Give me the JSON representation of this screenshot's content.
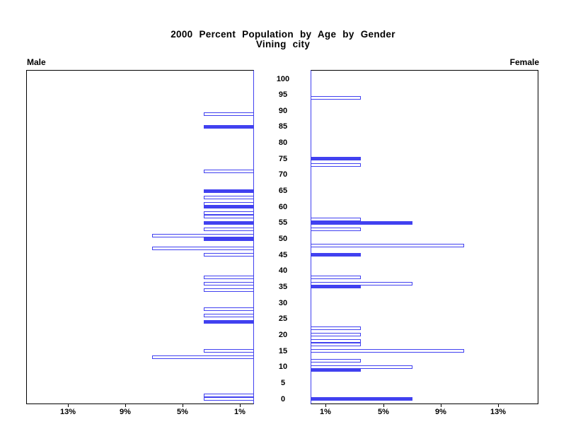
{
  "title": {
    "line1": "2000 Percent Population by Age by Gender",
    "line2": "Vining city"
  },
  "panel_labels": {
    "male": "Male",
    "female": "Female"
  },
  "colors": {
    "bar_blue": "#4141f0",
    "axis_black": "#000000",
    "background": "#ffffff"
  },
  "chart_data": {
    "type": "bar",
    "subtype": "population_pyramid",
    "title": "2000 Percent Population by Age by Gender",
    "subtitle": "Vining city",
    "legend": "none",
    "grid": false,
    "age_axis": {
      "min": 0,
      "max": 100,
      "step": 5,
      "tick_values": [
        0,
        5,
        10,
        15,
        20,
        25,
        30,
        35,
        40,
        45,
        50,
        55,
        60,
        65,
        70,
        75,
        80,
        85,
        90,
        95,
        100
      ],
      "tick_labels": [
        "0",
        "5",
        "10",
        "15",
        "20",
        "25",
        "30",
        "35",
        "40",
        "45",
        "50",
        "55",
        "60",
        "65",
        "70",
        "75",
        "80",
        "85",
        "90",
        "95",
        "100"
      ]
    },
    "percent_axis": {
      "max": 15.9,
      "tick_values": [
        1,
        5,
        9,
        13
      ],
      "tick_labels": [
        "1%",
        "5%",
        "9%",
        "13%"
      ]
    },
    "series": [
      {
        "name": "Male",
        "side": "left",
        "points": [
          {
            "age": 89,
            "pct": 3.5,
            "filled": false
          },
          {
            "age": 85,
            "pct": 3.5,
            "filled": true
          },
          {
            "age": 71,
            "pct": 3.5,
            "filled": false
          },
          {
            "age": 65,
            "pct": 3.5,
            "filled": true
          },
          {
            "age": 63,
            "pct": 3.5,
            "filled": false
          },
          {
            "age": 61,
            "pct": 3.5,
            "filled": false
          },
          {
            "age": 60,
            "pct": 3.5,
            "filled": true
          },
          {
            "age": 58,
            "pct": 3.5,
            "filled": false
          },
          {
            "age": 57,
            "pct": 3.5,
            "filled": false
          },
          {
            "age": 55,
            "pct": 3.5,
            "filled": true
          },
          {
            "age": 53,
            "pct": 3.5,
            "filled": false
          },
          {
            "age": 51,
            "pct": 7.1,
            "filled": false
          },
          {
            "age": 50,
            "pct": 3.5,
            "filled": true
          },
          {
            "age": 47,
            "pct": 7.1,
            "filled": false
          },
          {
            "age": 45,
            "pct": 3.5,
            "filled": false
          },
          {
            "age": 38,
            "pct": 3.5,
            "filled": false
          },
          {
            "age": 36,
            "pct": 3.5,
            "filled": false
          },
          {
            "age": 34,
            "pct": 3.5,
            "filled": false
          },
          {
            "age": 28,
            "pct": 3.5,
            "filled": false
          },
          {
            "age": 26,
            "pct": 3.5,
            "filled": false
          },
          {
            "age": 24,
            "pct": 3.5,
            "filled": true
          },
          {
            "age": 15,
            "pct": 3.5,
            "filled": false
          },
          {
            "age": 13,
            "pct": 7.1,
            "filled": false
          },
          {
            "age": 1,
            "pct": 3.5,
            "filled": false
          },
          {
            "age": 0,
            "pct": 3.5,
            "filled": false
          }
        ]
      },
      {
        "name": "Female",
        "side": "right",
        "points": [
          {
            "age": 94,
            "pct": 3.5,
            "filled": false
          },
          {
            "age": 75,
            "pct": 3.5,
            "filled": true
          },
          {
            "age": 73,
            "pct": 3.5,
            "filled": false
          },
          {
            "age": 56,
            "pct": 3.5,
            "filled": false
          },
          {
            "age": 55,
            "pct": 7.1,
            "filled": true
          },
          {
            "age": 53,
            "pct": 3.5,
            "filled": false
          },
          {
            "age": 48,
            "pct": 10.7,
            "filled": false
          },
          {
            "age": 45,
            "pct": 3.5,
            "filled": true
          },
          {
            "age": 38,
            "pct": 3.5,
            "filled": false
          },
          {
            "age": 36,
            "pct": 7.1,
            "filled": false
          },
          {
            "age": 35,
            "pct": 3.5,
            "filled": true
          },
          {
            "age": 22,
            "pct": 3.5,
            "filled": false
          },
          {
            "age": 20,
            "pct": 3.5,
            "filled": false
          },
          {
            "age": 18,
            "pct": 3.5,
            "filled": false
          },
          {
            "age": 17,
            "pct": 3.5,
            "filled": false
          },
          {
            "age": 15,
            "pct": 10.7,
            "filled": false
          },
          {
            "age": 12,
            "pct": 3.5,
            "filled": false
          },
          {
            "age": 10,
            "pct": 7.1,
            "filled": false
          },
          {
            "age": 9,
            "pct": 3.5,
            "filled": true
          },
          {
            "age": 0,
            "pct": 7.1,
            "filled": true
          }
        ]
      }
    ]
  }
}
